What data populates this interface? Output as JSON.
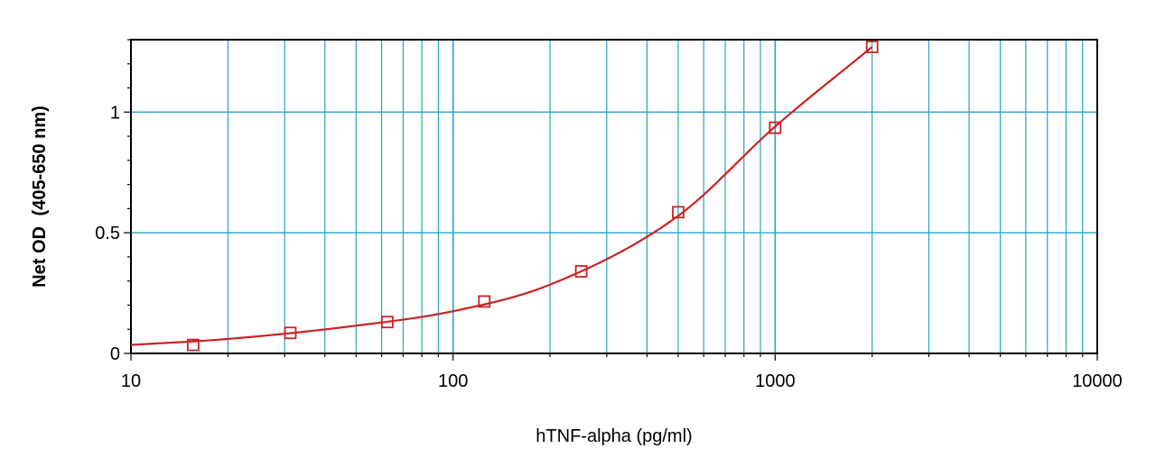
{
  "chart_data": {
    "type": "scatter",
    "xlabel": "hTNF-alpha (pg/ml)",
    "ylabel_main": "Net OD",
    "ylabel_unit": "(405-650 nm)",
    "x_scale": "log",
    "xlim": [
      10,
      10000
    ],
    "ylim": [
      0,
      1.3
    ],
    "x_ticks": [
      10,
      100,
      1000,
      10000
    ],
    "x_tick_labels": [
      "10",
      "100",
      "1000",
      "10000"
    ],
    "y_ticks": [
      0,
      0.5,
      1
    ],
    "y_tick_labels": [
      "0",
      "0.5",
      "1"
    ],
    "grid": true,
    "legend": "none",
    "series": [
      {
        "x": [
          15.6,
          31.25,
          62.5,
          125,
          250,
          500,
          1000,
          2000
        ],
        "y": [
          0.035,
          0.085,
          0.13,
          0.215,
          0.34,
          0.585,
          0.935,
          1.27
        ]
      }
    ],
    "fit_curve": {
      "x": [
        10,
        20,
        50,
        100,
        200,
        500,
        1000,
        2000
      ],
      "y": [
        0.035,
        0.06,
        0.115,
        0.175,
        0.285,
        0.57,
        0.94,
        1.27
      ]
    },
    "colors": {
      "grid": "#27a3c6",
      "series": "#cc2222",
      "axis": "#000000"
    }
  }
}
